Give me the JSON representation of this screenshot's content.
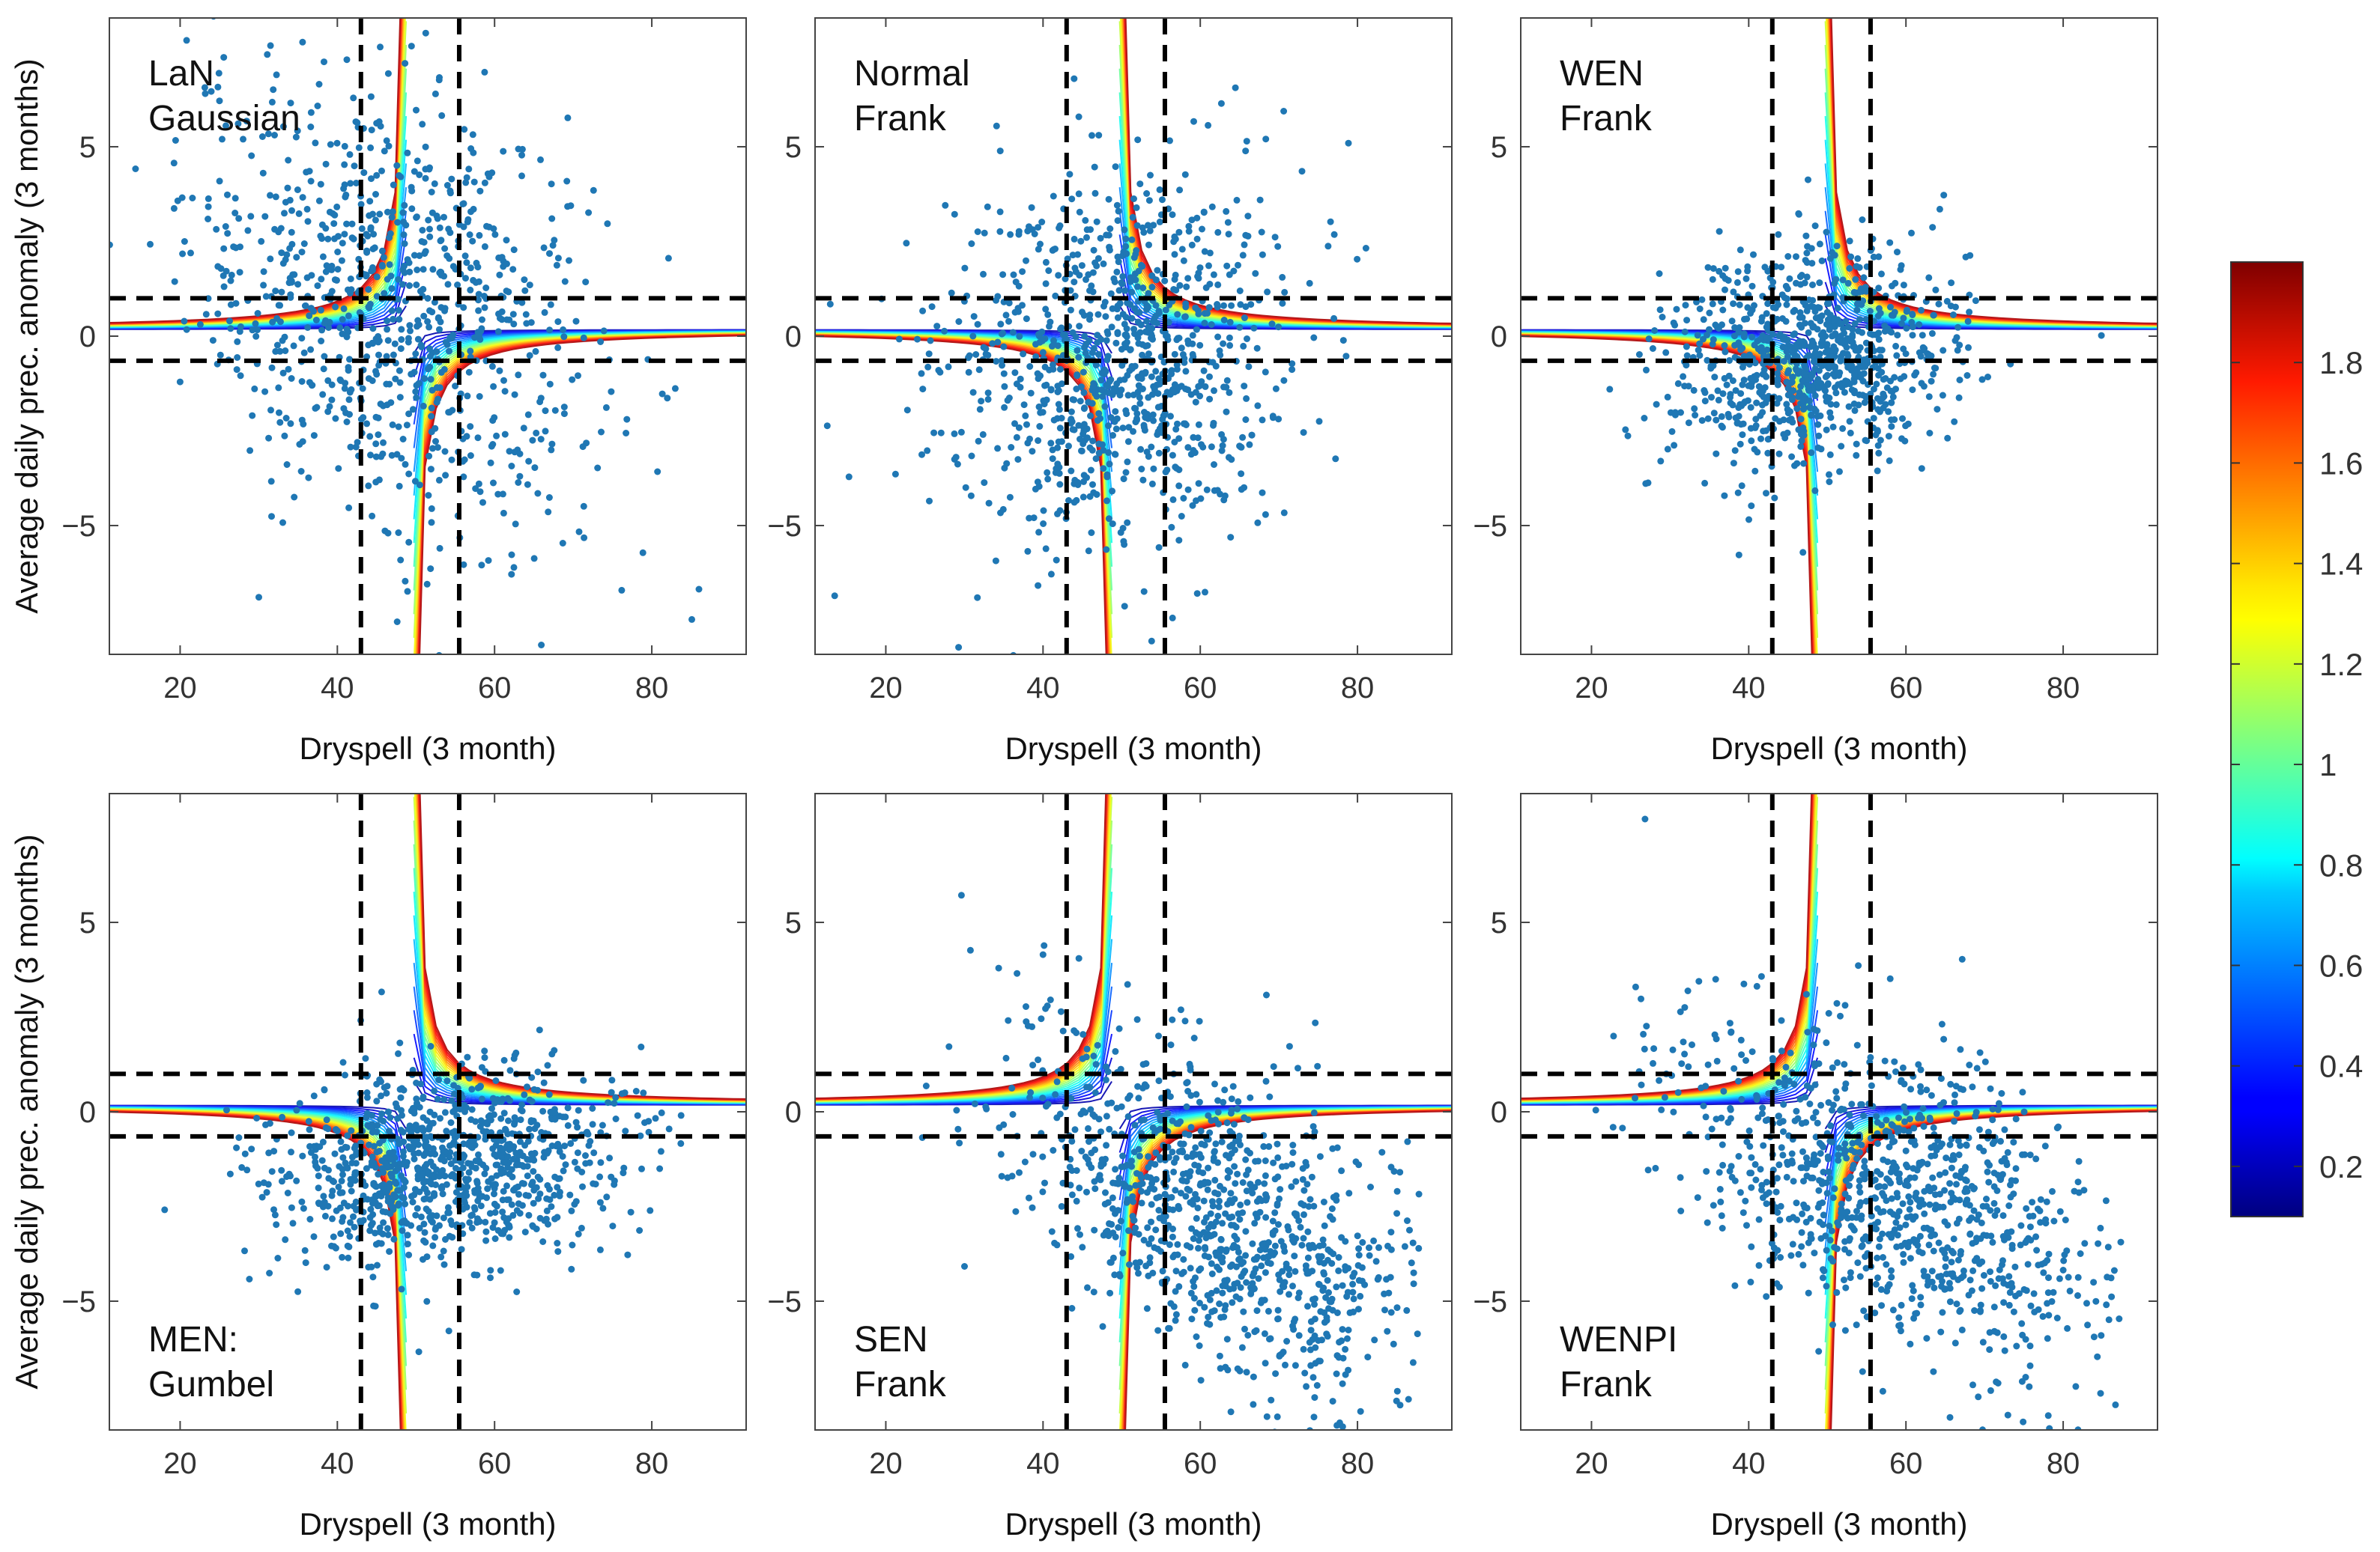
{
  "figure": {
    "colorbar": {
      "ticks": [
        "0.2",
        "0.4",
        "0.6",
        "0.8",
        "1",
        "1.2",
        "1.4",
        "1.6",
        "1.8"
      ],
      "tick_values": [
        0.2,
        0.4,
        0.6,
        0.8,
        1.0,
        1.2,
        1.4,
        1.6,
        1.8
      ],
      "range": [
        0.1,
        2.0
      ],
      "colormap": "jet"
    },
    "colors": {
      "scatter": "#1f77b4",
      "thresholds": "#000000",
      "axes": "#444444"
    }
  },
  "chart_data": [
    {
      "type": "scatter",
      "panel": "top-left",
      "label_lines": [
        "LaN",
        "Gaussian"
      ],
      "label_position": "top-left",
      "xlabel": "Dryspell (3 month)",
      "ylabel": "Average daily prec. anomaly (3 months)",
      "xlim": [
        11,
        92
      ],
      "ylim": [
        8.4,
        -8.4
      ],
      "xticks": [
        20,
        40,
        60,
        80
      ],
      "yticks": [
        -5,
        0,
        5
      ],
      "ytick_labels": [
        "−5",
        "0",
        "5"
      ],
      "thresholds_x": [
        43,
        55.5
      ],
      "thresholds_y": [
        -0.65,
        1.0
      ],
      "copula": "Gaussian",
      "points_n": 900,
      "points_center": [
        47,
        0.8
      ],
      "points_spread": [
        13,
        3.0
      ],
      "correlation": -0.25
    },
    {
      "type": "scatter",
      "panel": "top-middle",
      "label_lines": [
        "Normal",
        "Frank"
      ],
      "label_position": "top-left",
      "xlabel": "Dryspell (3 month)",
      "ylabel": "",
      "xlim": [
        11,
        92
      ],
      "ylim": [
        8.4,
        -8.4
      ],
      "xticks": [
        20,
        40,
        60,
        80
      ],
      "yticks": [
        -5,
        0,
        5
      ],
      "ytick_labels": [
        "−5",
        "0",
        "5"
      ],
      "thresholds_x": [
        43,
        55.5
      ],
      "thresholds_y": [
        -0.65,
        1.0
      ],
      "copula": "Frank",
      "points_n": 950,
      "points_center": [
        49,
        -0.6
      ],
      "points_spread": [
        11,
        2.4
      ],
      "correlation": 0.1
    },
    {
      "type": "scatter",
      "panel": "top-right",
      "label_lines": [
        "WEN",
        "Frank"
      ],
      "label_position": "top-left",
      "xlabel": "Dryspell (3 month)",
      "ylabel": "",
      "xlim": [
        11,
        92
      ],
      "ylim": [
        8.4,
        -8.4
      ],
      "xticks": [
        20,
        40,
        60,
        80
      ],
      "yticks": [
        -5,
        0,
        5
      ],
      "ytick_labels": [
        "−5",
        "0",
        "5"
      ],
      "thresholds_x": [
        43,
        55.5
      ],
      "thresholds_y": [
        -0.65,
        1.0
      ],
      "copula": "Frank",
      "points_n": 900,
      "points_center": [
        48,
        -0.6
      ],
      "points_spread": [
        9,
        1.5
      ],
      "correlation": 0.2
    },
    {
      "type": "scatter",
      "panel": "bottom-left",
      "label_lines": [
        "MEN:",
        "Gumbel"
      ],
      "label_position": "bottom-left",
      "xlabel": "Dryspell (3 month)",
      "ylabel": "Average daily prec. anomaly (3 months)",
      "xlim": [
        11,
        92
      ],
      "ylim": [
        8.4,
        -8.4
      ],
      "xticks": [
        20,
        40,
        60,
        80
      ],
      "yticks": [
        -5,
        0,
        5
      ],
      "ytick_labels": [
        "−5",
        "0",
        "5"
      ],
      "thresholds_x": [
        43,
        55.5
      ],
      "thresholds_y": [
        -0.65,
        1.0
      ],
      "copula": "Gumbel",
      "points_n": 1000,
      "points_center": [
        53,
        -1.5
      ],
      "points_spread": [
        11,
        1.3
      ],
      "correlation": 0.15
    },
    {
      "type": "scatter",
      "panel": "bottom-middle",
      "label_lines": [
        "SEN",
        "Frank"
      ],
      "label_position": "bottom-left",
      "xlabel": "Dryspell (3 month)",
      "ylabel": "",
      "xlim": [
        11,
        92
      ],
      "ylim": [
        8.4,
        -8.4
      ],
      "xticks": [
        20,
        40,
        60,
        80
      ],
      "yticks": [
        -5,
        0,
        5
      ],
      "ytick_labels": [
        "−5",
        "0",
        "5"
      ],
      "thresholds_x": [
        43,
        55.5
      ],
      "thresholds_y": [
        -0.65,
        1.0
      ],
      "copula": "Frank",
      "points_n": 1000,
      "points_center": [
        62,
        -2.7
      ],
      "points_spread": [
        13,
        2.4
      ],
      "correlation": -0.55
    },
    {
      "type": "scatter",
      "panel": "bottom-right",
      "label_lines": [
        "WENPI",
        "Frank"
      ],
      "label_position": "bottom-left",
      "xlabel": "Dryspell (3 month)",
      "ylabel": "",
      "xlim": [
        11,
        92
      ],
      "ylim": [
        8.4,
        -8.4
      ],
      "xticks": [
        20,
        40,
        60,
        80
      ],
      "yticks": [
        -5,
        0,
        5
      ],
      "ytick_labels": [
        "−5",
        "0",
        "5"
      ],
      "thresholds_x": [
        43,
        55.5
      ],
      "thresholds_y": [
        -0.65,
        1.0
      ],
      "copula": "Frank",
      "points_n": 1000,
      "points_center": [
        58,
        -2.0
      ],
      "points_spread": [
        14,
        2.3
      ],
      "correlation": -0.5
    }
  ]
}
